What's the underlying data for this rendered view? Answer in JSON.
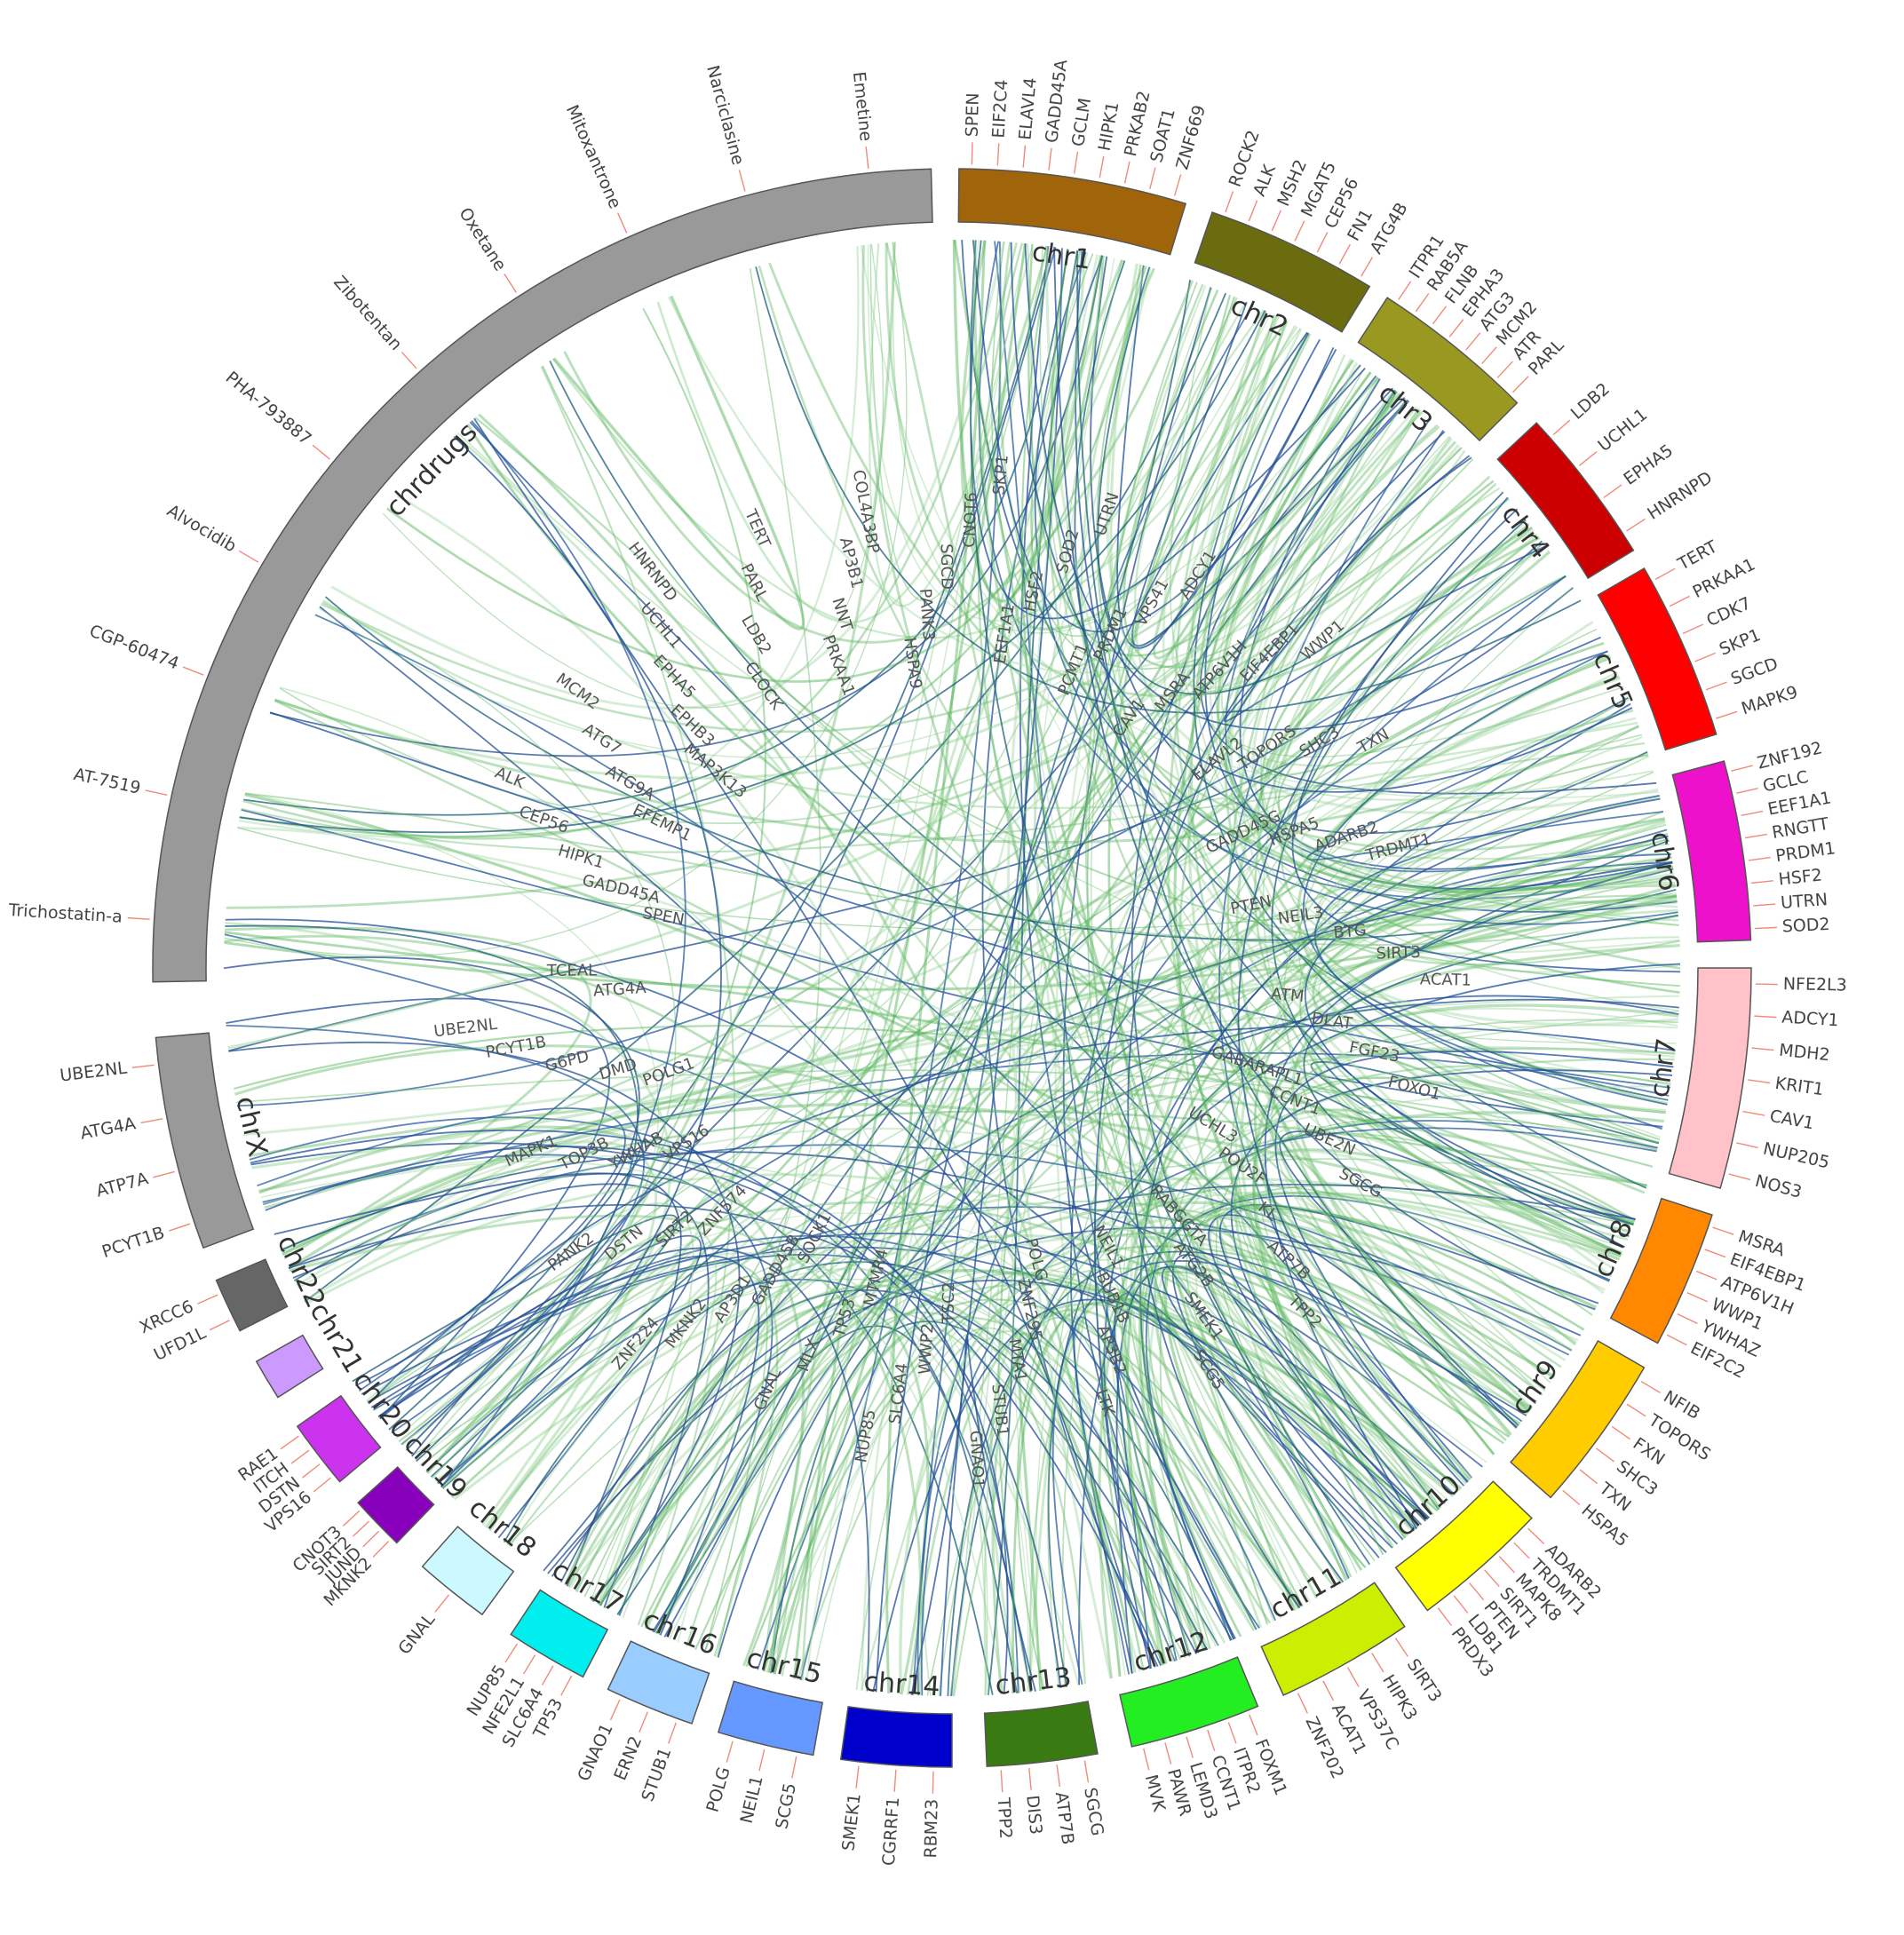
{
  "segments": [
    {
      "id": "chrdrugs",
      "label": "chrdrugs",
      "color": "#999999",
      "genes": [
        "Trichostatin-a",
        "AT-7519",
        "CGP-60474",
        "Alvocidib",
        "PHA-793887",
        "Zibotentan",
        "Oxetane",
        "Mitoxantrone",
        "Narciclasine",
        "Emetine"
      ]
    },
    {
      "id": "chr1",
      "label": "chr1",
      "color": "#a0650a",
      "genes": [
        "SPEN",
        "EIF2C4",
        "ELAVL4",
        "GADD45A",
        "GCLM",
        "HIPK1",
        "PRKAB2",
        "SOAT1",
        "ZNF669"
      ]
    },
    {
      "id": "chr2",
      "label": "chr2",
      "color": "#6b6b10",
      "genes": [
        "ROCK2",
        "ALK",
        "MSH2",
        "MGAT5",
        "CEP56",
        "FN1",
        "ATG4B"
      ]
    },
    {
      "id": "chr3",
      "label": "chr3",
      "color": "#999922",
      "genes": [
        "ITPR1",
        "RAB5A",
        "FLNB",
        "EPHA3",
        "ATG3",
        "MCM2",
        "ATR",
        "PARL"
      ]
    },
    {
      "id": "chr4",
      "label": "chr4",
      "color": "#cc0000",
      "genes": [
        "LDB2",
        "UCHL1",
        "EPHA5",
        "HNRNPD"
      ]
    },
    {
      "id": "chr5",
      "label": "chr5",
      "color": "#ff0000",
      "genes": [
        "TERT",
        "PRKAA1",
        "CDK7",
        "SKP1",
        "SGCD",
        "MAPK9"
      ]
    },
    {
      "id": "chr6",
      "label": "chr6",
      "color": "#ee11cc",
      "genes": [
        "ZNF192",
        "GCLC",
        "EEF1A1",
        "RNGTT",
        "PRDM1",
        "HSF2",
        "UTRN",
        "SOD2"
      ]
    },
    {
      "id": "chr7",
      "label": "chr7",
      "color": "#ffc2c8",
      "genes": [
        "NFE2L3",
        "ADCY1",
        "MDH2",
        "KRIT1",
        "CAV1",
        "NUP205",
        "NOS3"
      ]
    },
    {
      "id": "chr8",
      "label": "chr8",
      "color": "#ff8800",
      "genes": [
        "MSRA",
        "EIF4EBP1",
        "ATP6V1H",
        "WWP1",
        "YWHAZ",
        "EIF2C2"
      ]
    },
    {
      "id": "chr9",
      "label": "chr9",
      "color": "#ffcc00",
      "genes": [
        "NFIB",
        "TOPORS",
        "FXN",
        "SHC3",
        "TXN",
        "HSPA5"
      ]
    },
    {
      "id": "chr10",
      "label": "chr10",
      "color": "#ffff00",
      "genes": [
        "ADARB2",
        "TRDMT1",
        "MAPK8",
        "SIRT1",
        "PTEN",
        "LDB1",
        "PRDX3"
      ]
    },
    {
      "id": "chr11",
      "label": "chr11",
      "color": "#ccee00",
      "genes": [
        "SIRT3",
        "HIPK3",
        "VPS37C",
        "ACAT1",
        "ZNF202"
      ]
    },
    {
      "id": "chr12",
      "label": "chr12",
      "color": "#22ee22",
      "genes": [
        "FOXM1",
        "ITPR2",
        "CCNT1",
        "LEMD3",
        "PAWR",
        "MVK"
      ]
    },
    {
      "id": "chr13",
      "label": "chr13",
      "color": "#3a7a12",
      "genes": [
        "SGCG",
        "ATP7B",
        "DIS3",
        "TPP2"
      ]
    },
    {
      "id": "chr14",
      "label": "chr14",
      "color": "#0000cc",
      "genes": [
        "RBM23",
        "CGRRF1",
        "SMEK1"
      ]
    },
    {
      "id": "chr15",
      "label": "chr15",
      "color": "#6699ff",
      "genes": [
        "SCG5",
        "NEIL1",
        "POLG"
      ]
    },
    {
      "id": "chr16",
      "label": "chr16",
      "color": "#99ccff",
      "genes": [
        "STUB1",
        "ERN2",
        "GNAO1"
      ]
    },
    {
      "id": "chr17",
      "label": "chr17",
      "color": "#00eeee",
      "genes": [
        "TP53",
        "SLC6A4",
        "NFE2L1",
        "NUP85"
      ]
    },
    {
      "id": "chr18",
      "label": "chr18",
      "color": "#ccf8ff",
      "genes": [
        "GNAL"
      ]
    },
    {
      "id": "chr19",
      "label": "chr19",
      "color": "#8800bb",
      "genes": [
        "MKNK2",
        "JUND",
        "SIRT2",
        "CNOT3"
      ]
    },
    {
      "id": "chr20",
      "label": "chr20",
      "color": "#cc33ee",
      "genes": [
        "VPS16",
        "DSTN",
        "ITCH",
        "RAE1"
      ]
    },
    {
      "id": "chr21",
      "label": "chr21",
      "color": "#cc99ff",
      "genes": []
    },
    {
      "id": "chr22",
      "label": "chr22",
      "color": "#666666",
      "genes": [
        "UFD1L",
        "XRCC6"
      ]
    },
    {
      "id": "chrX",
      "label": "chrX",
      "color": "#999999",
      "genes": [
        "PCYT1B",
        "ATP7A",
        "ATG4A",
        "UBE2NL"
      ]
    }
  ],
  "inner_labels": [
    "SPEN",
    "GADD45A",
    "HIPK1",
    "CEP56",
    "ALK",
    "EFEMP1",
    "ATG9A",
    "ATG7",
    "MCM2",
    "MAP3K13",
    "EPHB3",
    "EPHA5",
    "UCHL1",
    "HNRNPD",
    "CLOCK",
    "LDB2",
    "PARL",
    "TERT",
    "PRKAA1",
    "NNT",
    "AP3B1",
    "COL4A3BP",
    "HSPA9",
    "PANK3",
    "SGCD",
    "CNOT6",
    "SKP1",
    "EEF1A1",
    "HSF2",
    "SOD2",
    "UTRN",
    "PCMT1",
    "PRDM1",
    "VPS41",
    "ADCY1",
    "CAV1",
    "MSRA",
    "ATP6V1H",
    "EIF4EBP1",
    "WWP1",
    "ELAVL2",
    "TOPORS",
    "SHC3",
    "TXN",
    "GADD45G",
    "HSPA5",
    "ADARB2",
    "TRDMT1",
    "PTEN",
    "NEIL3",
    "BTG",
    "SIRT3",
    "ACAT1",
    "ATM",
    "DLAT",
    "FGF23",
    "FOXO1",
    "GABARAPL1",
    "CCNT1",
    "UBE2N",
    "SGCG",
    "UCHL3",
    "POU2F",
    "KL",
    "ATP7B",
    "TPP2",
    "RABGGTA",
    "ATG2B",
    "SMEK1",
    "SCG5",
    "NEIL1",
    "BUB1B",
    "AP3B2",
    "LTK",
    "POLG",
    "ZNF295",
    "MTA1",
    "STUB1",
    "GNAO1",
    "TSC2",
    "WWP2",
    "SLC6A4",
    "NUP85",
    "MTMR4",
    "TP53",
    "MLX",
    "GNAL",
    "SOCK1",
    "GADD45B",
    "AP3D1",
    "MKNK2",
    "ZNF224",
    "ZNF574",
    "SIRT2",
    "DSTN",
    "PANK2",
    "VPS16",
    "YWHAB",
    "TOP3B",
    "MAPK1",
    "POLG1",
    "DMD",
    "G6PD",
    "PCYT1B",
    "UBE2NL",
    "ATG4A",
    "TCEAL"
  ]
}
